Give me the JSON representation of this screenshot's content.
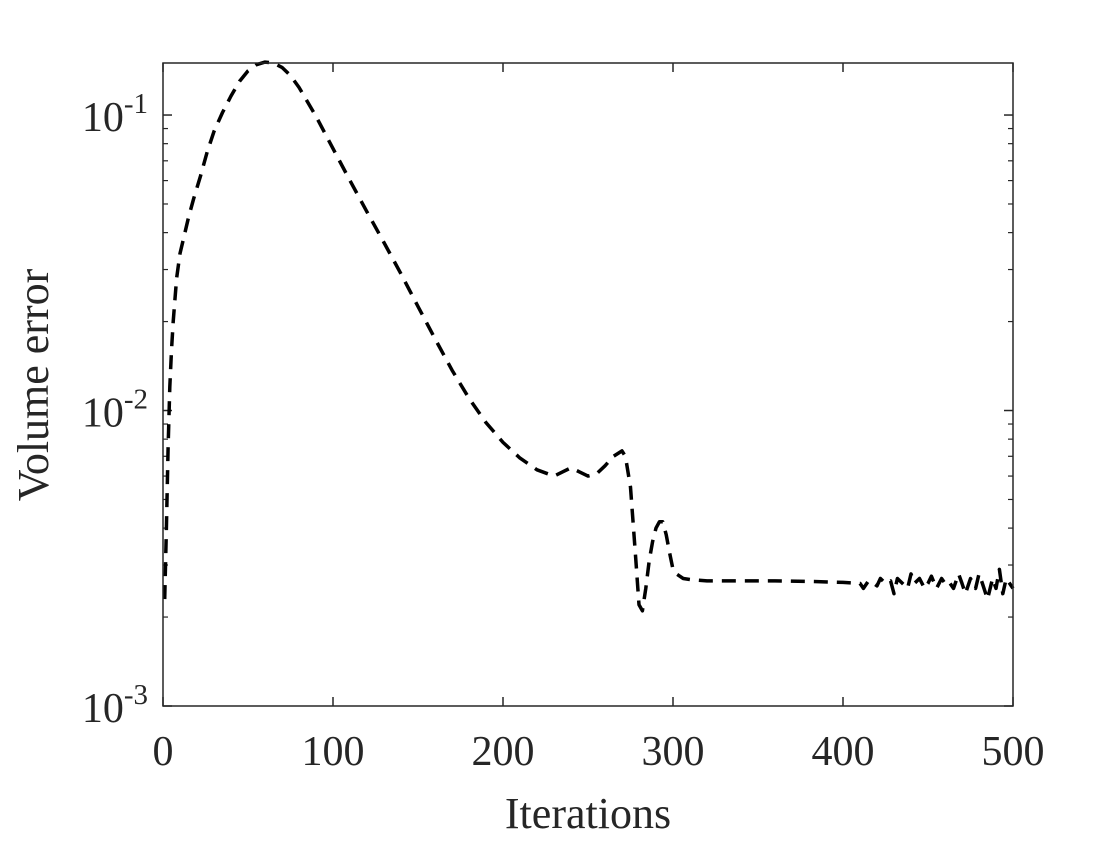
{
  "chart_data": {
    "type": "line",
    "title": "",
    "xlabel": "Iterations",
    "ylabel": "Volume error",
    "xlim": [
      0,
      500
    ],
    "ylim": [
      0.001,
      0.15
    ],
    "yscale": "log",
    "grid": false,
    "box": true,
    "x_ticks": [
      0,
      100,
      200,
      300,
      400,
      500
    ],
    "x_tick_labels": [
      "0",
      "100",
      "200",
      "300",
      "400",
      "500"
    ],
    "y_ticks": [
      {
        "value": 0.1,
        "base": "10",
        "exponent": "-1"
      },
      {
        "value": 0.01,
        "base": "10",
        "exponent": "-2"
      },
      {
        "value": 0.001,
        "base": "10",
        "exponent": "-3"
      }
    ],
    "series": [
      {
        "color": "#000000",
        "line_style": "dashed",
        "x": [
          1,
          2,
          3,
          4,
          5,
          6,
          8,
          10,
          12,
          15,
          18,
          22,
          26,
          30,
          35,
          40,
          45,
          50,
          55,
          60,
          65,
          70,
          75,
          80,
          90,
          100,
          110,
          120,
          130,
          140,
          150,
          160,
          170,
          180,
          190,
          200,
          210,
          220,
          230,
          235,
          240,
          245,
          250,
          255,
          260,
          265,
          270,
          272,
          275,
          278,
          280,
          282,
          284,
          286,
          288,
          290,
          292,
          294,
          296,
          298,
          300,
          302,
          304,
          306,
          310,
          320,
          340,
          360,
          380,
          400,
          410,
          412,
          415,
          418,
          420,
          422,
          425,
          428,
          430,
          432,
          435,
          438,
          440,
          442,
          445,
          448,
          450,
          452,
          455,
          458,
          460,
          462,
          465,
          468,
          470,
          472,
          475,
          478,
          480,
          482,
          485,
          488,
          490,
          492,
          494,
          496,
          498,
          500
        ],
        "y": [
          0.0023,
          0.004,
          0.0075,
          0.012,
          0.016,
          0.02,
          0.028,
          0.034,
          0.038,
          0.045,
          0.052,
          0.062,
          0.075,
          0.088,
          0.102,
          0.116,
          0.13,
          0.141,
          0.148,
          0.151,
          0.15,
          0.145,
          0.136,
          0.124,
          0.099,
          0.077,
          0.06,
          0.047,
          0.037,
          0.029,
          0.0225,
          0.0175,
          0.0137,
          0.011,
          0.0091,
          0.0078,
          0.0069,
          0.0063,
          0.006,
          0.0062,
          0.0064,
          0.0062,
          0.006,
          0.0061,
          0.0065,
          0.007,
          0.0073,
          0.007,
          0.0055,
          0.0032,
          0.0022,
          0.0021,
          0.0025,
          0.0031,
          0.0036,
          0.004,
          0.0042,
          0.0042,
          0.0038,
          0.0033,
          0.0029,
          0.0028,
          0.00275,
          0.0027,
          0.00268,
          0.00265,
          0.00265,
          0.00265,
          0.00264,
          0.00262,
          0.0026,
          0.0025,
          0.00265,
          0.0026,
          0.00255,
          0.0027,
          0.0026,
          0.00265,
          0.0024,
          0.0027,
          0.0026,
          0.0025,
          0.0028,
          0.0026,
          0.0027,
          0.0025,
          0.0026,
          0.00275,
          0.0025,
          0.0027,
          0.0026,
          0.00265,
          0.0025,
          0.0028,
          0.0026,
          0.0024,
          0.0027,
          0.0025,
          0.0028,
          0.0026,
          0.0023,
          0.0027,
          0.0025,
          0.0029,
          0.0024,
          0.0027,
          0.0026,
          0.0025
        ]
      }
    ]
  }
}
